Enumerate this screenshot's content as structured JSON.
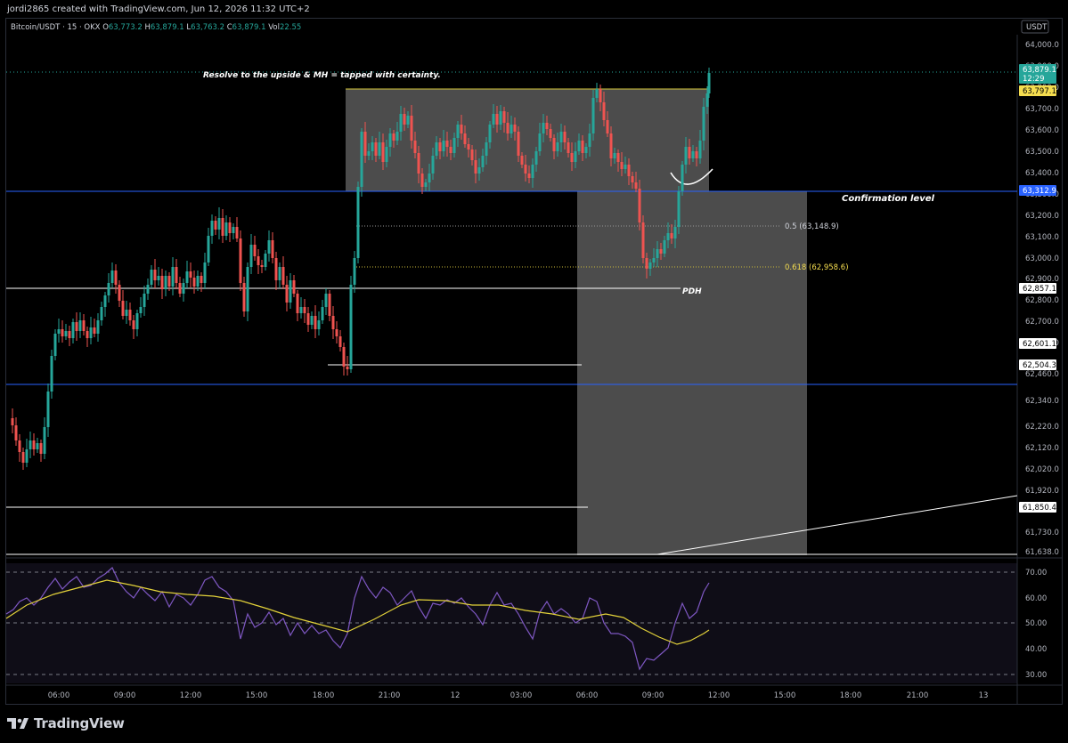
{
  "header": {
    "created_text": "jordi2865 created with TradingView.com, Jun 12, 2026 11:32 UTC+2"
  },
  "legend": {
    "symbol": "Bitcoin/USDT · 15 · OKX",
    "open_label": "O",
    "open": "63,773.2",
    "high_label": "H",
    "high": "63,879.1",
    "low_label": "L",
    "low": "63,763.2",
    "close_label": "C",
    "close": "63,879.1",
    "vol_label": "Vol",
    "vol": "22.55"
  },
  "colors": {
    "up": "#26a69a",
    "down": "#ef5350",
    "blue_line": "#2962ff",
    "rsi": "#7e57c2",
    "rsi_ma": "#e3d23a",
    "zone": "#595959",
    "fib_618": "#f5dd4f"
  },
  "chart_data": {
    "type": "candlestick",
    "symbol": "Bitcoin/USDT",
    "interval": "15",
    "exchange": "OKX",
    "currency_label": "USDT",
    "price_axis_ticks": [
      "64,000.0",
      "63,900.0",
      "63,800.0",
      "63,700.0",
      "63,600.0",
      "63,500.0",
      "63,400.0",
      "63,300.0",
      "63,200.0",
      "63,100.0",
      "63,000.0",
      "62,900.0",
      "62,800.0",
      "62,700.0",
      "62,600.0",
      "62,460.0",
      "62,340.0",
      "62,220.0",
      "62,120.0",
      "62,020.0",
      "61,920.0",
      "61,730.0",
      "61,638.0"
    ],
    "time_axis_ticks": [
      "06:00",
      "09:00",
      "12:00",
      "15:00",
      "18:00",
      "21:00",
      "12",
      "03:00",
      "06:00",
      "09:00",
      "12:00",
      "15:00",
      "18:00",
      "21:00",
      "13"
    ],
    "price_labels": [
      {
        "value": "63,879.1",
        "sub": "12:29",
        "style": "current"
      },
      {
        "value": "63,797.1",
        "style": "yellow"
      },
      {
        "value": "63,312.9",
        "style": "blue"
      },
      {
        "value": "62,857.1",
        "style": "white"
      },
      {
        "value": "62,601.1",
        "style": "white"
      },
      {
        "value": "62,504.3",
        "style": "white"
      },
      {
        "value": "61,850.4",
        "style": "white"
      }
    ],
    "annotations": {
      "title_note": "Resolve to the upside & MH = tapped with certainty.",
      "confirmation": "Confirmation level",
      "fib_05": "0.5 (63,148.9)",
      "fib_0618": "0.618 (62,958.6)",
      "pdh": "PDH"
    },
    "levels": {
      "confirmation": 63312.9,
      "range_high": 63797.1,
      "pdh": 62857.1,
      "fib_05": 63148.9,
      "fib_0618": 62958.6
    },
    "rsi_axis_ticks": [
      "70.00",
      "60.00",
      "50.00",
      "40.00",
      "30.00"
    ],
    "rsi_bands": {
      "upper": 70,
      "middle": 50,
      "lower": 30
    }
  },
  "branding": {
    "logo_text": "TradingView"
  }
}
